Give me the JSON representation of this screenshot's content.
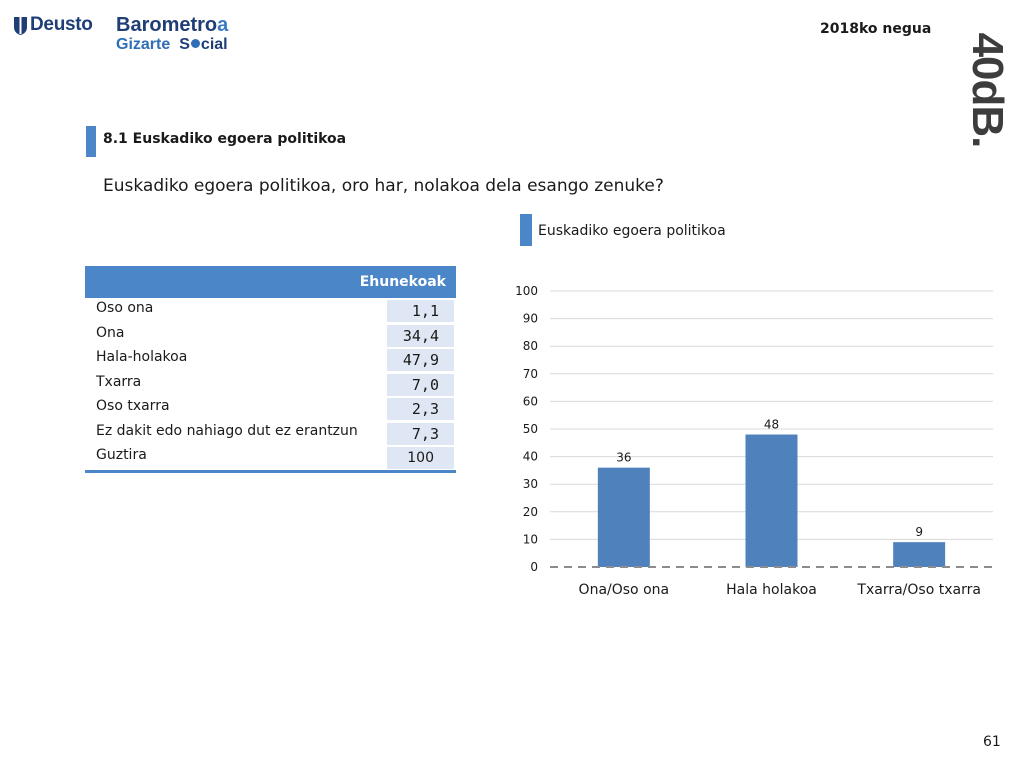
{
  "header": {
    "deusto": "Deusto",
    "barometro_main": "Barometro",
    "barometro_accent": "a",
    "gizarte": "Gizarte",
    "social_s": "S",
    "social_rest": "cial",
    "season": "2018ko negua",
    "brand": "40dB."
  },
  "section": {
    "title": "8.1 Euskadiko egoera politikoa"
  },
  "question": "Euskadiko egoera politikoa, oro har, nolakoa dela esango zenuke?",
  "table": {
    "header": "Ehunekoak",
    "rows": [
      {
        "label": "Oso ona",
        "value": "1,1"
      },
      {
        "label": "Ona",
        "value": "34,4"
      },
      {
        "label": "Hala-holakoa",
        "value": "47,9"
      },
      {
        "label": "Txarra",
        "value": "7,0"
      },
      {
        "label": "Oso txarra",
        "value": "2,3"
      },
      {
        "label": "Ez dakit edo nahiago dut ez erantzun",
        "value": "7,3"
      },
      {
        "label": "Guztira",
        "value": "100"
      }
    ]
  },
  "chart_data": {
    "type": "bar",
    "title": "Euskadiko egoera politikoa",
    "categories": [
      "Ona/Oso ona",
      "Hala holakoa",
      "Txarra/Oso txarra"
    ],
    "values": [
      36,
      48,
      9
    ],
    "data_labels": [
      "36",
      "48",
      "9"
    ],
    "ylim": [
      0,
      100
    ],
    "yticks": [
      0,
      10,
      20,
      30,
      40,
      50,
      60,
      70,
      80,
      90,
      100
    ],
    "grid": true,
    "bar_color": "#4f81bd",
    "xlabel": "",
    "ylabel": ""
  },
  "colors": {
    "accent": "#4a86c8",
    "cell_bg": "#dfe7f4",
    "dark_blue": "#1f3e78"
  },
  "page_number": "61"
}
